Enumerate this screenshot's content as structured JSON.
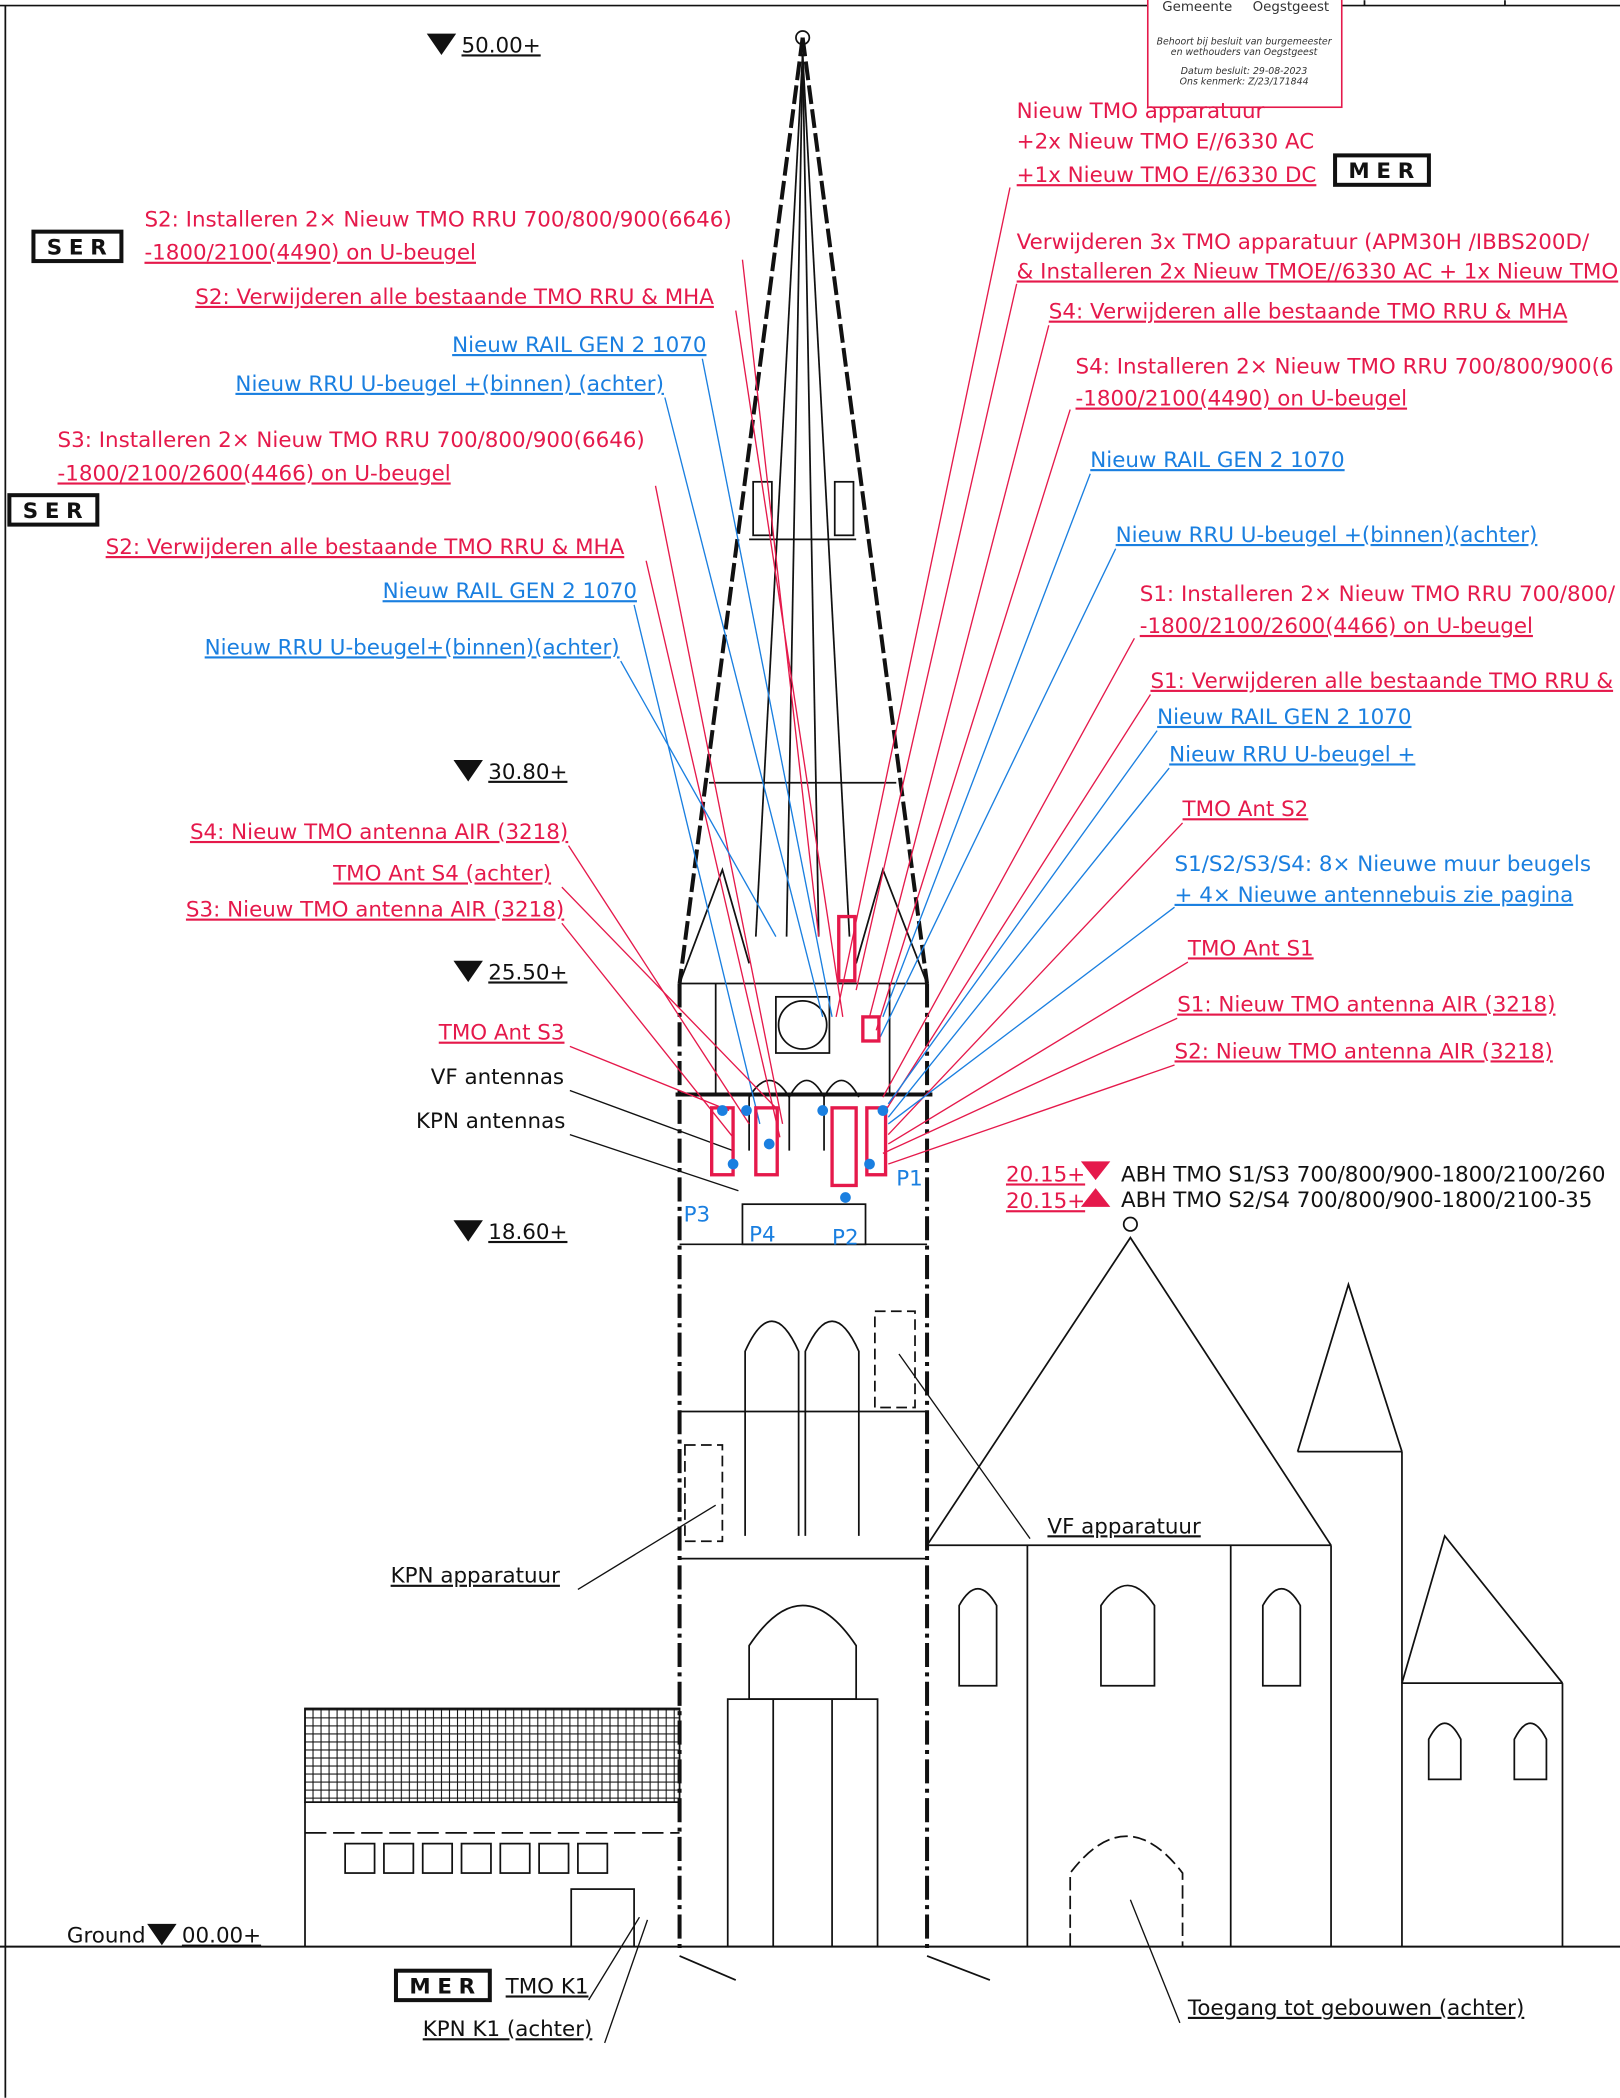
{
  "stamp": {
    "municipality": "Gemeente",
    "place": "Oegstgeest",
    "line1": "Behoort bij besluit van burgemeester",
    "line2": "en wethouders van Oegstgeest",
    "date": "Datum besluit: 29-08-2023",
    "reference": "Ons kenmerk: Z/23/171844"
  },
  "levels": [
    "50.00+",
    "30.80+",
    "25.50+",
    "18.60+",
    "00.00+",
    "20.15+",
    "20.15+"
  ],
  "ground": "Ground",
  "annotations": [
    "Nieuw TMO apparatuur",
    "+2x Nieuw TMO E//6330 AC",
    "+1x Nieuw TMO E//6330 DC",
    "MER",
    "S2: Installeren 2× Nieuw TMO RRU 700/800/900(6646)",
    "-1800/2100(4490) on U-beugel",
    "SER",
    "S2: Verwijderen alle bestaande TMO RRU & MHA",
    "Nieuw RAIL GEN 2 1070",
    "Nieuw RRU U-beugel +(binnen) (achter)",
    "S3: Installeren 2× Nieuw TMO RRU 700/800/900(6646)",
    "-1800/2100/2600(4466) on U-beugel",
    "SER",
    "S2: Verwijderen alle bestaande TMO RRU & MHA",
    "Nieuw RAIL GEN 2 1070",
    "Nieuw RRU U-beugel+(binnen)(achter)",
    "Verwijderen 3x TMO apparatuur (APM30H /IBBS200D/",
    "& Installeren 2x Nieuw TMOE//6330 AC + 1x Nieuw TMO",
    "S4: Verwijderen alle bestaande TMO RRU & MHA",
    "S4: Installeren 2× Nieuw TMO RRU 700/800/900(6",
    "-1800/2100(4490) on U-beugel",
    "Nieuw RAIL GEN 2 1070",
    "Nieuw RRU U-beugel +(binnen)(achter)",
    "S1: Installeren 2× Nieuw TMO RRU 700/800/",
    "-1800/2100/2600(4466) on U-beugel",
    "S1: Verwijderen alle bestaande TMO RRU &",
    "Nieuw RAIL GEN 2 1070",
    "Nieuw RRU U-beugel +",
    "TMO Ant S2",
    "S1/S2/S3/S4: 8× Nieuwe muur beugels",
    "+ 4× Nieuwe antennebuis zie pagina",
    "TMO Ant S1",
    "S1: Nieuw TMO antenna AIR (3218)",
    "S2: Nieuw TMO antenna AIR (3218)",
    "S4: Nieuw TMO antenna AIR (3218)",
    "TMO Ant S4 (achter)",
    "S3: Nieuw TMO antenna AIR (3218)",
    "TMO Ant S3",
    "VF antennas",
    "KPN antennas",
    "P1",
    "P2",
    "P3",
    "P4",
    "ABH TMO S1/S3 700/800/900-1800/2100/260",
    "ABH TMO S2/S4 700/800/900-1800/2100-35",
    "VF apparatuur",
    "KPN apparatuur",
    "MER",
    "TMO K1",
    "KPN K1 (achter)",
    "Toegang tot gebouwen (achter)"
  ]
}
